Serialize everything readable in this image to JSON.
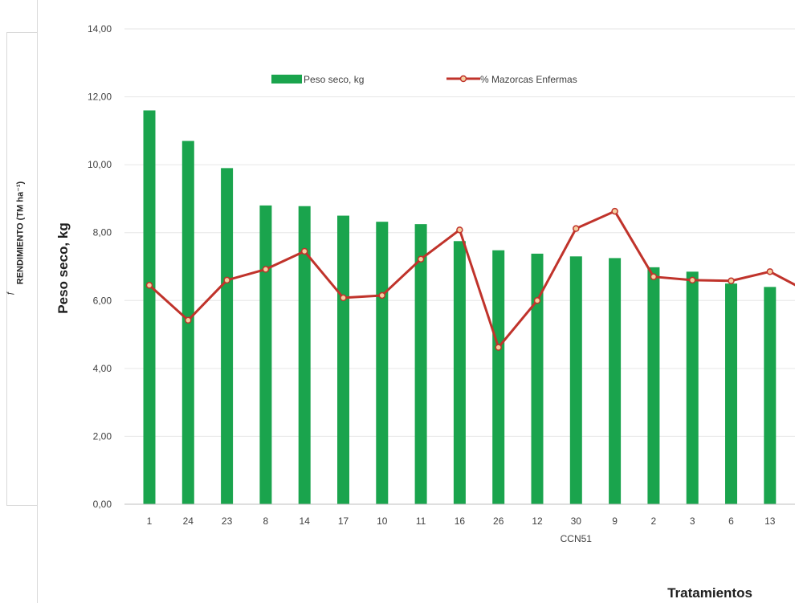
{
  "chart_data": {
    "type": "bar",
    "categories": [
      "1",
      "24",
      "23",
      "8",
      "14",
      "17",
      "10",
      "11",
      "16",
      "26",
      "12",
      "30",
      "9",
      "2",
      "3",
      "6",
      "13"
    ],
    "category_sublabels": {
      "30": "CCN51"
    },
    "series": [
      {
        "name": "Peso seco, kg",
        "kind": "bar",
        "color": "#1aa44d",
        "values": [
          11.6,
          10.7,
          9.9,
          8.8,
          8.78,
          8.5,
          8.32,
          8.25,
          7.75,
          7.48,
          7.38,
          7.3,
          7.25,
          6.98,
          6.85,
          6.5,
          6.4
        ]
      },
      {
        "name": "% Mazorcas Enfermas",
        "kind": "line",
        "color": "#c0332b",
        "marker_fill": "#f5d0a0",
        "values": [
          6.45,
          5.42,
          6.6,
          6.92,
          7.45,
          6.08,
          6.15,
          7.22,
          8.08,
          4.62,
          6.0,
          8.12,
          8.63,
          6.7,
          6.6,
          6.58,
          6.85
        ]
      }
    ],
    "ylabel": "Peso seco, kg",
    "secondary_ylabel": "RENDIMIENTO (TM ha⁻¹)",
    "xlabel": "Tratamientos",
    "ylim": [
      0,
      14
    ],
    "yticks": [
      "0,00",
      "2,00",
      "4,00",
      "6,00",
      "8,00",
      "10,00",
      "12,00",
      "14,00"
    ],
    "grid": true,
    "legend_position": "top"
  },
  "stray_mark": "ƒ"
}
